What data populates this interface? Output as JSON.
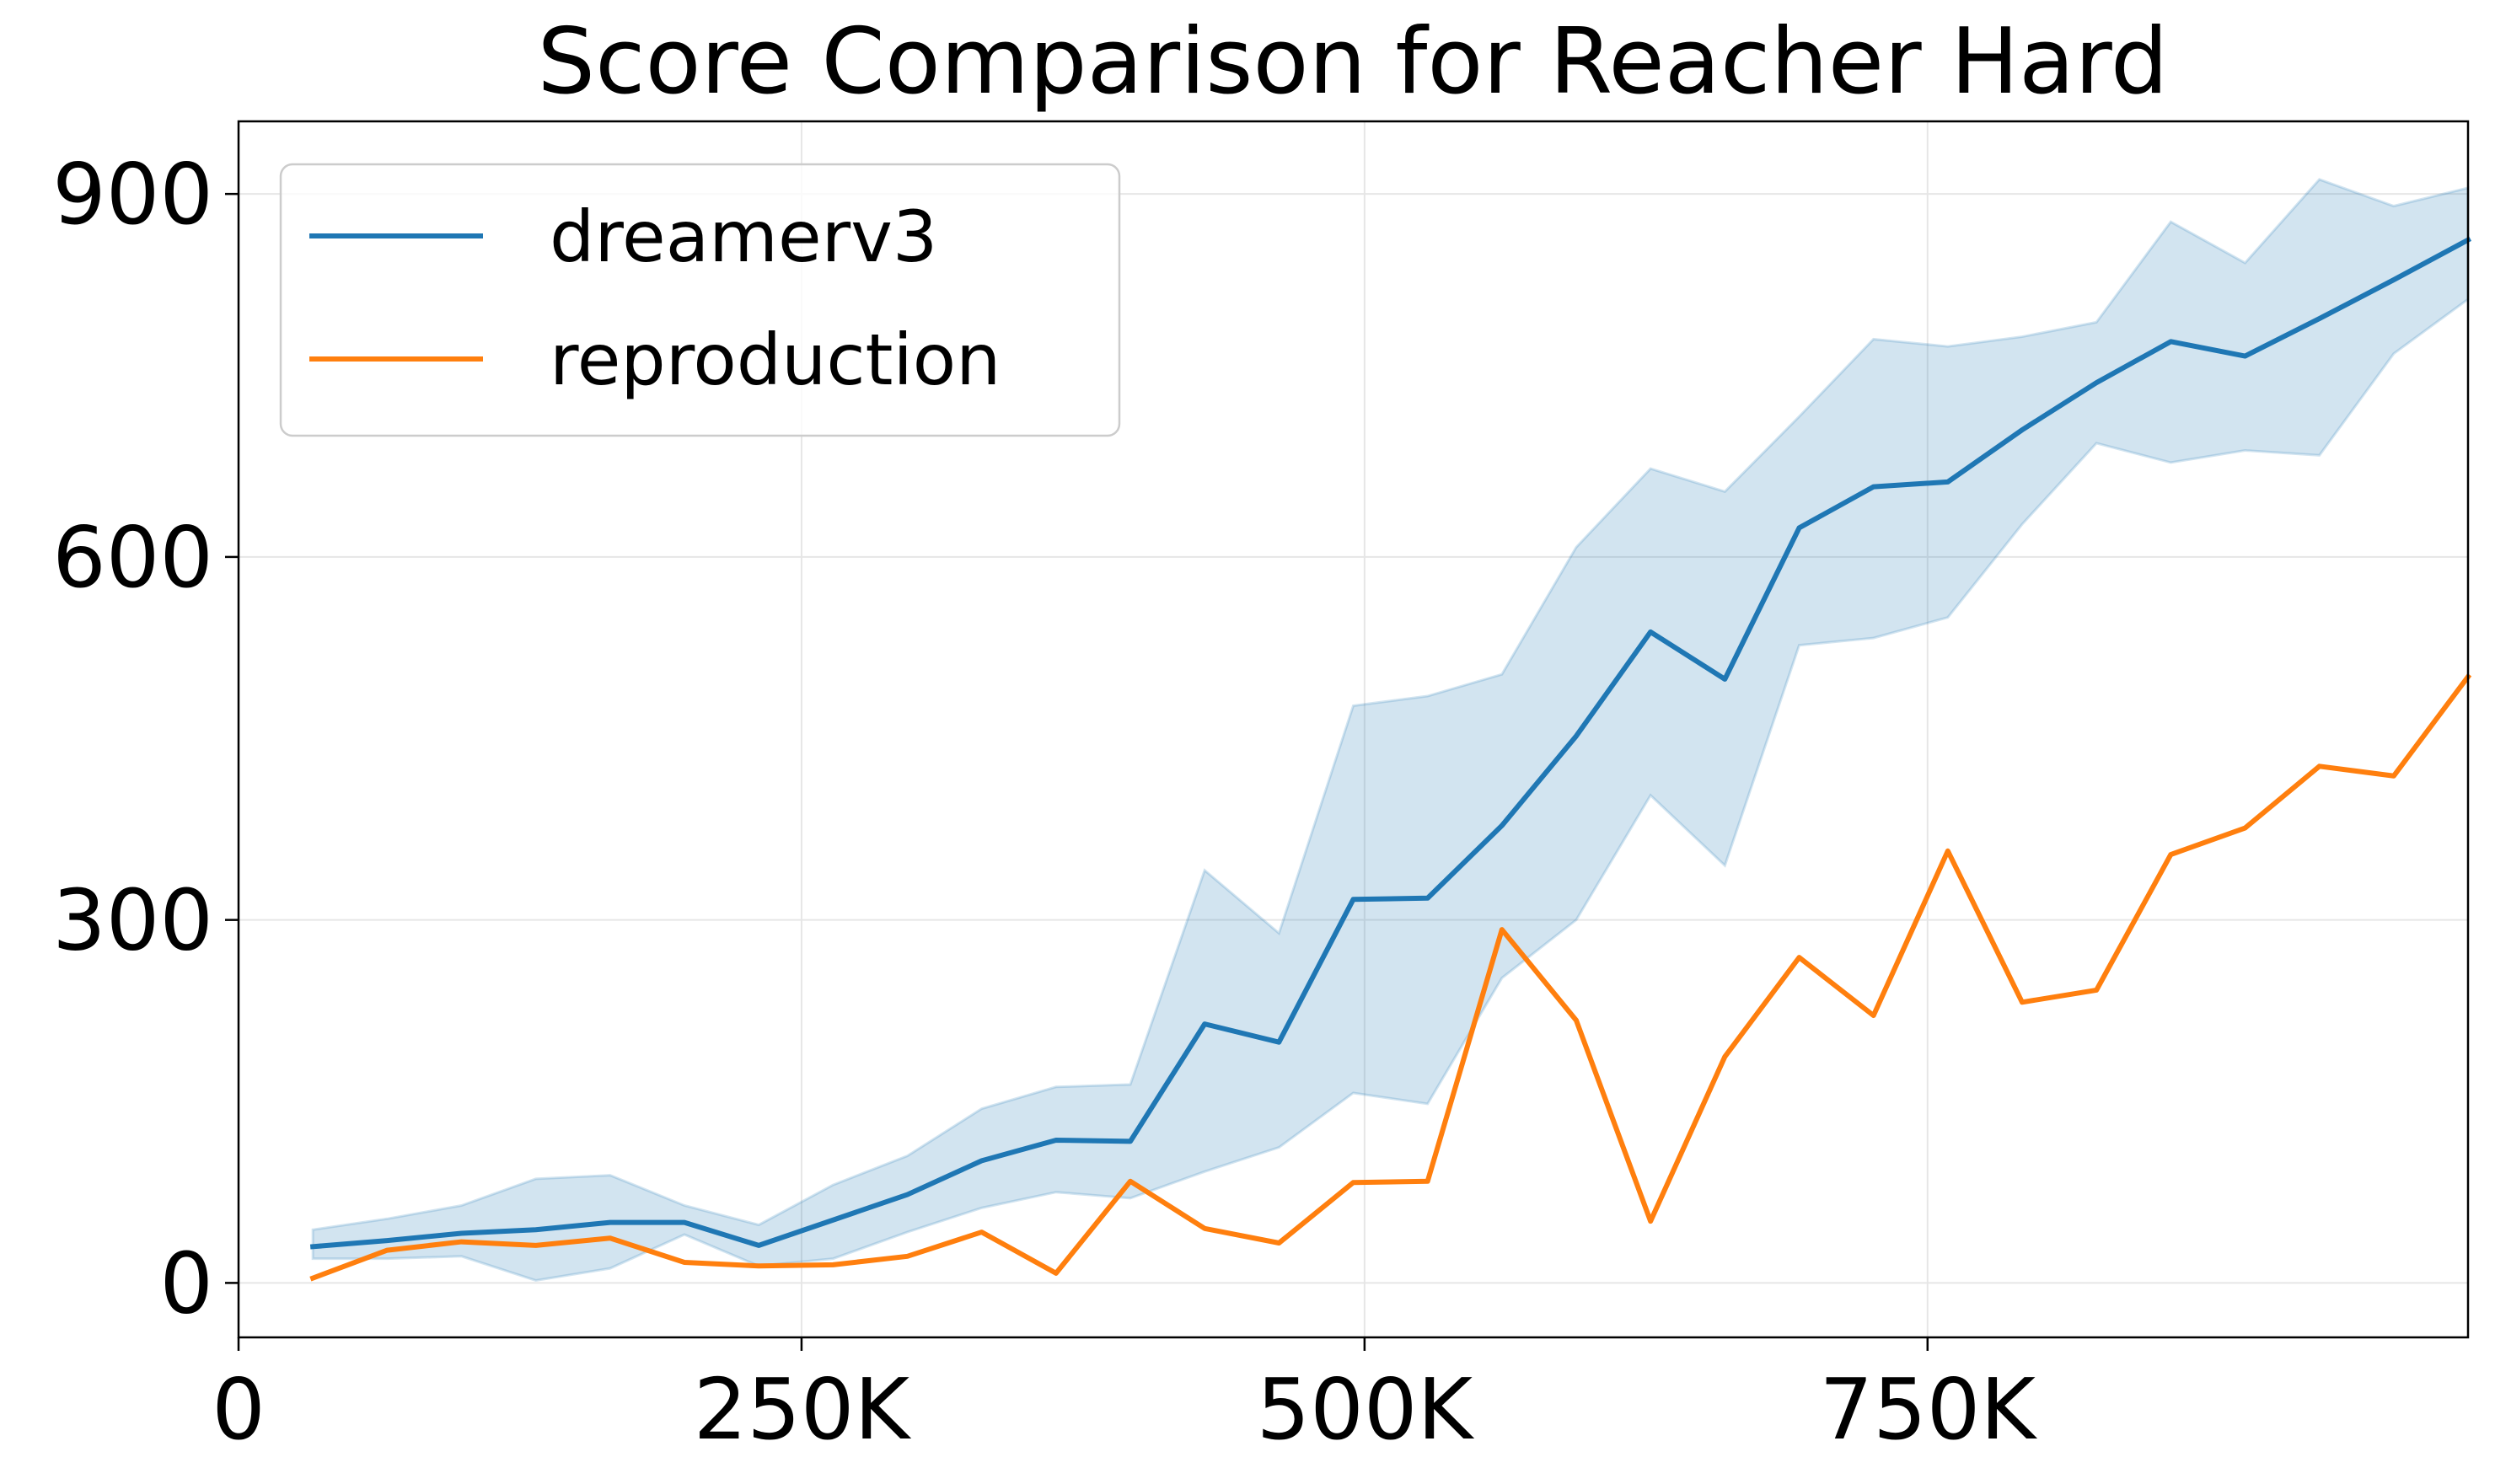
{
  "chart_data": {
    "type": "line",
    "title": "Score Comparison for Reacher Hard",
    "xlabel": "",
    "ylabel": "",
    "xlim": [
      0,
      990000
    ],
    "ylim": [
      -45,
      960
    ],
    "x_ticks": [
      {
        "value": 0,
        "label": "0"
      },
      {
        "value": 250000,
        "label": "250K"
      },
      {
        "value": 500000,
        "label": "500K"
      },
      {
        "value": 750000,
        "label": "750K"
      }
    ],
    "y_ticks": [
      {
        "value": 0,
        "label": "0"
      },
      {
        "value": 300,
        "label": "300"
      },
      {
        "value": 600,
        "label": "600"
      },
      {
        "value": 900,
        "label": "900"
      }
    ],
    "grid": true,
    "legend_position": "top-left",
    "x": [
      33000,
      66000,
      99000,
      132000,
      165000,
      198000,
      231000,
      264000,
      297000,
      330000,
      363000,
      396000,
      429000,
      462000,
      495000,
      528000,
      561000,
      594000,
      627000,
      660000,
      693000,
      726000,
      759000,
      792000,
      825000,
      858000,
      891000,
      924000,
      957000,
      990000
    ],
    "series": [
      {
        "name": "dreamerv3",
        "color": "#1f77b4",
        "values": [
          30,
          35,
          41,
          44,
          50,
          50,
          31,
          52,
          73,
          101,
          118,
          117,
          214,
          199,
          317,
          318,
          378,
          452,
          538,
          499,
          624,
          658,
          662,
          705,
          744,
          778,
          766,
          797,
          829,
          862
        ],
        "band_lower": [
          20,
          20,
          22,
          2,
          12,
          40,
          14,
          20,
          42,
          62,
          75,
          70,
          92,
          112,
          157,
          148,
          252,
          300,
          403,
          345,
          527,
          533,
          550,
          627,
          694,
          678,
          688,
          684,
          768,
          813
        ],
        "band_upper": [
          44,
          53,
          64,
          86,
          89,
          64,
          48,
          81,
          105,
          144,
          162,
          164,
          341,
          289,
          477,
          485,
          503,
          608,
          673,
          654,
          716,
          780,
          774,
          782,
          794,
          877,
          843,
          912,
          890,
          905
        ]
      },
      {
        "name": "reproduction",
        "color": "#ff7f0e",
        "values": [
          4,
          27,
          34,
          31,
          37,
          17,
          14,
          15,
          22,
          42,
          8,
          84,
          45,
          33,
          83,
          84,
          292,
          217,
          51,
          187,
          269,
          221,
          357,
          232,
          242,
          354,
          376,
          427,
          419,
          501
        ]
      }
    ]
  }
}
